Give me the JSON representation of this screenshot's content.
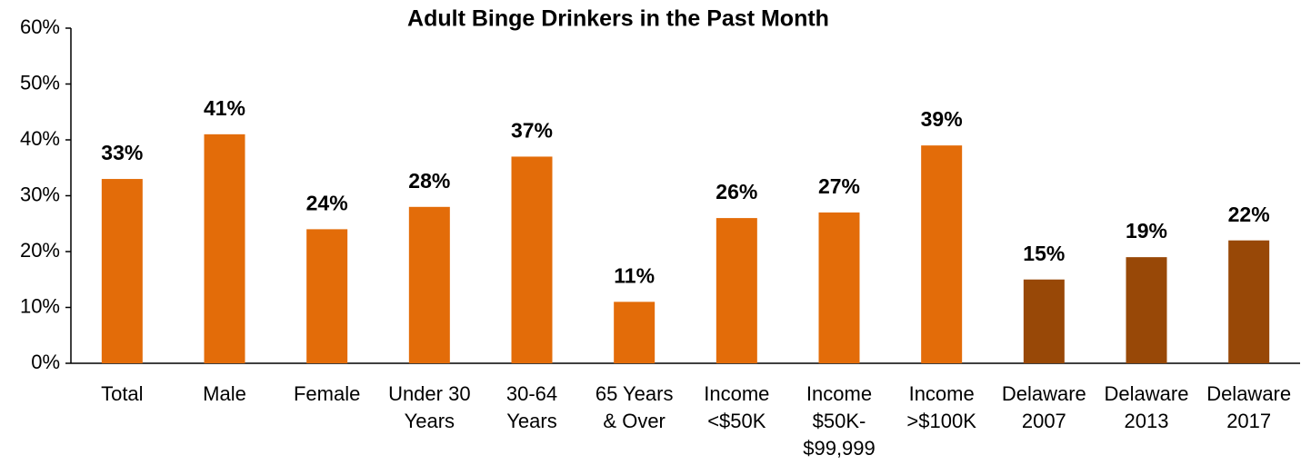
{
  "chart_data": {
    "type": "bar",
    "title": "Adult Binge Drinkers in the Past Month",
    "categories": [
      [
        "Total"
      ],
      [
        "Male"
      ],
      [
        "Female"
      ],
      [
        "Under 30",
        "Years"
      ],
      [
        "30-64",
        "Years"
      ],
      [
        "65 Years",
        "& Over"
      ],
      [
        "Income",
        "<$50K"
      ],
      [
        "Income",
        "$50K-",
        "$99,999"
      ],
      [
        "Income",
        ">$100K"
      ],
      [
        "Delaware",
        "2007"
      ],
      [
        "Delaware",
        "2013"
      ],
      [
        "Delaware",
        "2017"
      ]
    ],
    "values": [
      33,
      41,
      24,
      28,
      37,
      11,
      26,
      27,
      39,
      15,
      19,
      22
    ],
    "value_labels": [
      "33%",
      "41%",
      "24%",
      "28%",
      "37%",
      "11%",
      "26%",
      "27%",
      "39%",
      "15%",
      "19%",
      "22%"
    ],
    "colors": [
      "#e36c09",
      "#e36c09",
      "#e36c09",
      "#e36c09",
      "#e36c09",
      "#e36c09",
      "#e36c09",
      "#e36c09",
      "#e36c09",
      "#984807",
      "#984807",
      "#984807"
    ],
    "ylim": [
      0,
      60
    ],
    "yticks": [
      {
        "value": 0,
        "label": "0%"
      },
      {
        "value": 10,
        "label": "10%"
      },
      {
        "value": 20,
        "label": "20%"
      },
      {
        "value": 30,
        "label": "30%"
      },
      {
        "value": 40,
        "label": "40%"
      },
      {
        "value": 50,
        "label": "50%"
      },
      {
        "value": 60,
        "label": "60%"
      }
    ],
    "grid": false
  }
}
